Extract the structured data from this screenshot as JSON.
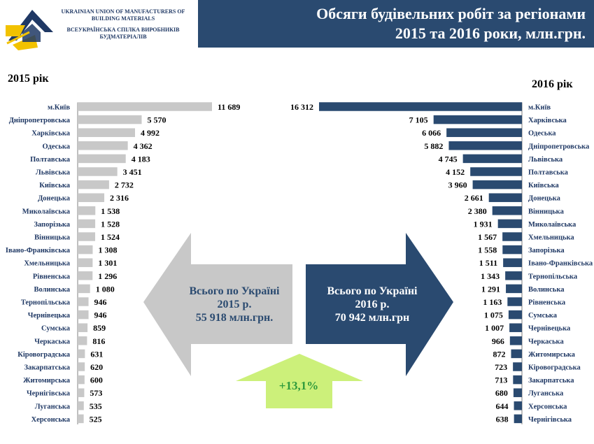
{
  "header": {
    "org_en": "UKRAINIAN UNION OF MANUFACTURERS OF BUILDING MATERIALS",
    "org_ua": "ВСЕУКРАЇНСЬКА СПІЛКА ВИРОБНИКІВ БУДМАТЕРІАЛІВ",
    "title_line1": "Обсяги будівельних робіт за регіонами",
    "title_line2": "2015 та 2016 роки, млн.грн."
  },
  "labels": {
    "year_2015": "2015 рік",
    "year_2016": "2016 рік",
    "total_2015": [
      "Всього по Україні",
      "2015 р.",
      "55 918 млн.грн."
    ],
    "total_2016": [
      "Всього по Україні",
      "2016 р.",
      "70 942 млн.грн"
    ],
    "growth": "+13,1%"
  },
  "colors": {
    "bar_2015": "#c8c8c8",
    "bar_2016": "#2a4a70",
    "title_bg": "#2a4a70",
    "growth_arrow": "#ccf07a",
    "growth_text": "#2e9a3c"
  },
  "chart_data": [
    {
      "type": "bar",
      "orientation": "horizontal",
      "title": "2015 рік",
      "categories": [
        "м.Київ",
        "Дніпропетровська",
        "Харківська",
        "Одеська",
        "Полтавська",
        "Львівська",
        "Київська",
        "Донецька",
        "Миколаївська",
        "Запорізька",
        "Вінницька",
        "Івано-Франківська",
        "Хмельницька",
        "Рівненська",
        "Волинська",
        "Тернопільська",
        "Чернівецька",
        "Сумська",
        "Черкаська",
        "Кіровоградська",
        "Закарпатська",
        "Житомирська",
        "Чернігівська",
        "Луганська",
        "Херсонська"
      ],
      "values": [
        11689,
        5570,
        4992,
        4362,
        4183,
        3451,
        2732,
        2316,
        1538,
        1528,
        1524,
        1308,
        1301,
        1296,
        1080,
        946,
        946,
        859,
        816,
        631,
        620,
        600,
        573,
        535,
        525
      ],
      "value_labels": [
        "11 689",
        "5 570",
        "4 992",
        "4 362",
        "4 183",
        "3 451",
        "2 732",
        "2 316",
        "1 538",
        "1 528",
        "1 524",
        "1 308",
        "1 301",
        "1 296",
        "1 080",
        "946",
        "946",
        "859",
        "816",
        "631",
        "620",
        "600",
        "573",
        "535",
        "525"
      ],
      "xlim": [
        0,
        11689
      ]
    },
    {
      "type": "bar",
      "orientation": "horizontal",
      "title": "2016 рік",
      "categories": [
        "м.Київ",
        "Харківська",
        "Одеська",
        "Дніпропетровська",
        "Львівська",
        "Полтавська",
        "Київська",
        "Донецька",
        "Вінницька",
        "Миколаївська",
        "Хмельницька",
        "Запорізька",
        "Івано-Франківська",
        "Тернопільська",
        "Волинська",
        "Рівненська",
        "Сумська",
        "Чернівецька",
        "Черкаська",
        "Житомирська",
        "Кіровоградська",
        "Закарпатська",
        "Луганська",
        "Херсонська",
        "Чернігівська"
      ],
      "values": [
        16312,
        7105,
        6066,
        5882,
        4745,
        4152,
        3960,
        2661,
        2380,
        1931,
        1567,
        1558,
        1511,
        1343,
        1291,
        1163,
        1075,
        1007,
        966,
        872,
        723,
        713,
        680,
        644,
        638
      ],
      "value_labels": [
        "16 312",
        "7 105",
        "6 066",
        "5 882",
        "4 745",
        "4 152",
        "3 960",
        "2 661",
        "2 380",
        "1 931",
        "1 567",
        "1 558",
        "1 511",
        "1 343",
        "1 291",
        "1 163",
        "1 075",
        "1 007",
        "966",
        "872",
        "723",
        "713",
        "680",
        "644",
        "638"
      ],
      "xlim": [
        0,
        16312
      ]
    }
  ]
}
